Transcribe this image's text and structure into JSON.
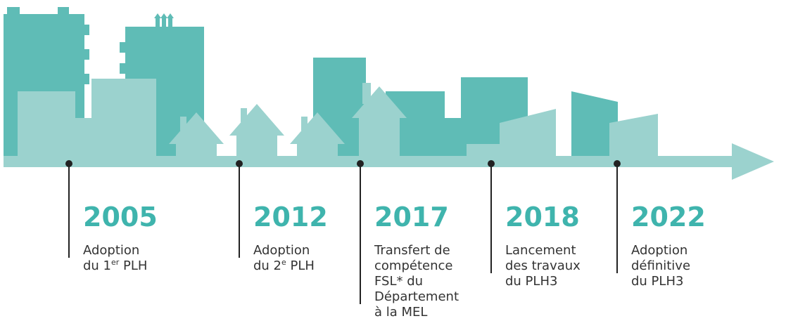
{
  "timeline": {
    "events": [
      {
        "year": "2005",
        "lines": [
          "Adoption",
          {
            "pre": "du 1",
            "sup": "er",
            "post": " PLH"
          }
        ]
      },
      {
        "year": "2012",
        "lines": [
          "Adoption",
          {
            "pre": "du 2",
            "sup": "e",
            "post": " PLH"
          }
        ]
      },
      {
        "year": "2017",
        "lines": [
          "Transfert de",
          "compétence",
          "FSL* du",
          "Département",
          "à la MEL"
        ]
      },
      {
        "year": "2018",
        "lines": [
          "Lancement",
          "des travaux",
          "du PLH3"
        ]
      },
      {
        "year": "2022",
        "lines": [
          "Adoption",
          "définitive",
          "du PLH3"
        ]
      }
    ]
  }
}
